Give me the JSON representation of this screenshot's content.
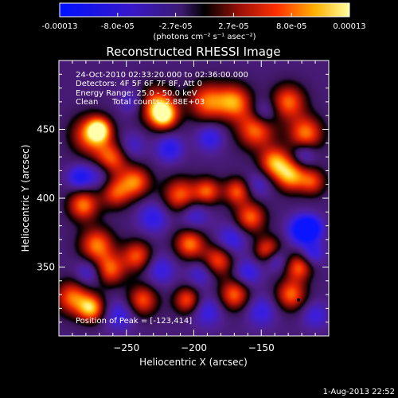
{
  "chart_data": {
    "type": "heatmap",
    "title": "Reconstructed RHESSI Image",
    "xlabel": "Heliocentric X (arcsec)",
    "ylabel": "Heliocentric Y (arcsec)",
    "xlim": [
      -300,
      -100
    ],
    "ylim": [
      300,
      500
    ],
    "x_ticks": [
      -250,
      -200,
      -150
    ],
    "y_ticks": [
      350,
      400,
      450
    ],
    "colorbar": {
      "ticks": [
        "-0.00013",
        "-8.0e-05",
        "-2.7e-05",
        "2.7e-05",
        "8.0e-05",
        "0.00013"
      ],
      "units": "(photons cm⁻² s⁻¹ asec⁻²)",
      "range": [
        -0.00013,
        0.00013
      ]
    },
    "annotations": {
      "time": "24-Oct-2010 02:33:20.000 to 02:36:00.000",
      "detectors": "Detectors: 4F 5F 6F 7F 8F, Att 0",
      "energy": "Energy Range: 25.0 - 50.0 keV",
      "algorithm": "Clean",
      "counts": "Total counts: 2.88E+03",
      "peak": "Position of Peak = [-123,414]"
    },
    "footer_date": "1-Aug-2013 22:52",
    "peak_marker": [
      -123,
      414
    ],
    "blobs": [
      {
        "x": -277,
        "y": 446,
        "w": 0.85,
        "s": 10
      },
      {
        "x": -270,
        "y": 450,
        "w": 0.95,
        "s": 6
      },
      {
        "x": -262,
        "y": 428,
        "w": 0.9,
        "s": 9
      },
      {
        "x": -228,
        "y": 468,
        "w": 0.85,
        "s": 10
      },
      {
        "x": -222,
        "y": 460,
        "w": 1.0,
        "s": 7
      },
      {
        "x": -190,
        "y": 470,
        "w": 0.85,
        "s": 10
      },
      {
        "x": -170,
        "y": 470,
        "w": 0.9,
        "s": 9
      },
      {
        "x": -154,
        "y": 450,
        "w": 0.9,
        "s": 10
      },
      {
        "x": -130,
        "y": 470,
        "w": 0.85,
        "s": 9
      },
      {
        "x": -117,
        "y": 447,
        "w": 0.9,
        "s": 9
      },
      {
        "x": -140,
        "y": 426,
        "w": 0.95,
        "s": 8
      },
      {
        "x": -128,
        "y": 416,
        "w": 0.95,
        "s": 8
      },
      {
        "x": -112,
        "y": 412,
        "w": 0.7,
        "s": 7
      },
      {
        "x": -282,
        "y": 395,
        "w": 0.9,
        "s": 8
      },
      {
        "x": -272,
        "y": 366,
        "w": 0.9,
        "s": 9
      },
      {
        "x": -258,
        "y": 404,
        "w": 0.75,
        "s": 8
      },
      {
        "x": -243,
        "y": 412,
        "w": 0.85,
        "s": 8
      },
      {
        "x": -210,
        "y": 402,
        "w": 0.85,
        "s": 9
      },
      {
        "x": -190,
        "y": 405,
        "w": 0.8,
        "s": 7
      },
      {
        "x": -168,
        "y": 405,
        "w": 0.8,
        "s": 7
      },
      {
        "x": -203,
        "y": 367,
        "w": 0.9,
        "s": 8
      },
      {
        "x": -182,
        "y": 355,
        "w": 0.8,
        "s": 8
      },
      {
        "x": -158,
        "y": 386,
        "w": 0.85,
        "s": 8
      },
      {
        "x": -145,
        "y": 362,
        "w": 0.85,
        "s": 7
      },
      {
        "x": -262,
        "y": 348,
        "w": 0.8,
        "s": 8
      },
      {
        "x": -242,
        "y": 358,
        "w": 0.8,
        "s": 8
      },
      {
        "x": -290,
        "y": 328,
        "w": 0.85,
        "s": 9
      },
      {
        "x": -276,
        "y": 320,
        "w": 1.0,
        "s": 7
      },
      {
        "x": -238,
        "y": 326,
        "w": 0.8,
        "s": 8
      },
      {
        "x": -205,
        "y": 326,
        "w": 0.8,
        "s": 7
      },
      {
        "x": -170,
        "y": 330,
        "w": 0.85,
        "s": 8
      },
      {
        "x": -128,
        "y": 330,
        "w": 0.85,
        "s": 8
      },
      {
        "x": -122,
        "y": 350,
        "w": 0.8,
        "s": 7
      },
      {
        "x": -218,
        "y": 436,
        "w": -0.55,
        "s": 7
      },
      {
        "x": -188,
        "y": 444,
        "w": -0.5,
        "s": 7
      },
      {
        "x": -246,
        "y": 438,
        "w": -0.35,
        "s": 7
      },
      {
        "x": -270,
        "y": 418,
        "w": -0.5,
        "s": 8
      },
      {
        "x": -285,
        "y": 415,
        "w": -0.6,
        "s": 6
      },
      {
        "x": -278,
        "y": 346,
        "w": -0.45,
        "s": 7
      },
      {
        "x": -230,
        "y": 386,
        "w": -0.5,
        "s": 8
      },
      {
        "x": -200,
        "y": 388,
        "w": -0.45,
        "s": 8
      },
      {
        "x": -172,
        "y": 370,
        "w": -0.5,
        "s": 8
      },
      {
        "x": -225,
        "y": 348,
        "w": -0.45,
        "s": 8
      },
      {
        "x": -195,
        "y": 345,
        "w": -0.4,
        "s": 7
      },
      {
        "x": -160,
        "y": 346,
        "w": -0.5,
        "s": 7
      },
      {
        "x": -152,
        "y": 410,
        "w": -0.35,
        "s": 7
      },
      {
        "x": -120,
        "y": 377,
        "w": -0.85,
        "s": 7
      },
      {
        "x": -113,
        "y": 378,
        "w": -0.75,
        "s": 6
      },
      {
        "x": -140,
        "y": 356,
        "w": -0.55,
        "s": 6
      },
      {
        "x": -112,
        "y": 360,
        "w": -0.5,
        "s": 6
      },
      {
        "x": -148,
        "y": 462,
        "w": -0.5,
        "s": 7
      },
      {
        "x": -118,
        "y": 432,
        "w": -0.45,
        "s": 6
      },
      {
        "x": -255,
        "y": 315,
        "w": -0.45,
        "s": 8
      },
      {
        "x": -190,
        "y": 318,
        "w": -0.45,
        "s": 8
      },
      {
        "x": -150,
        "y": 318,
        "w": -0.45,
        "s": 8
      },
      {
        "x": -245,
        "y": 470,
        "w": -0.4,
        "s": 7
      },
      {
        "x": -110,
        "y": 315,
        "w": -0.4,
        "s": 7
      }
    ]
  }
}
